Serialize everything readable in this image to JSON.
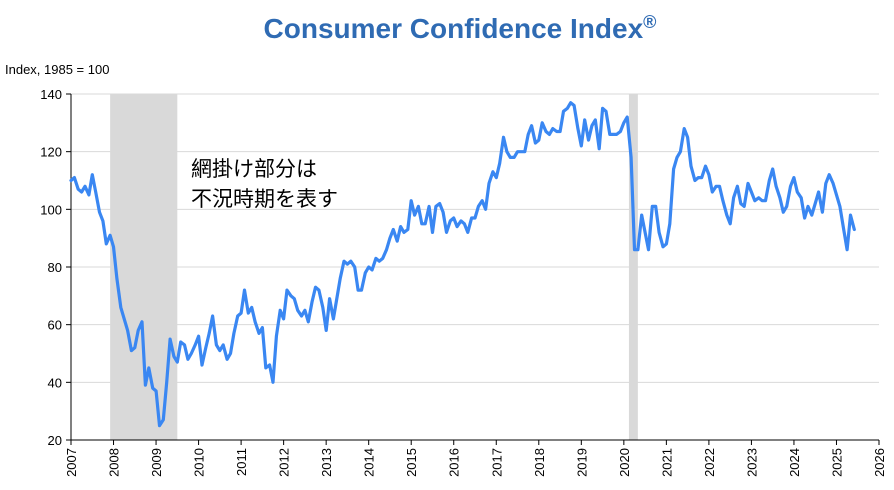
{
  "chart_data": {
    "type": "line",
    "title": "Consumer Confidence Index",
    "title_mark": "®",
    "ylabel": "Index, 1985 = 100",
    "xlabel": "",
    "ylim": [
      20,
      140
    ],
    "xlim": [
      2007,
      2026
    ],
    "yticks": [
      20,
      40,
      60,
      80,
      100,
      120,
      140
    ],
    "xticks": [
      2007,
      2008,
      2009,
      2010,
      2011,
      2012,
      2013,
      2014,
      2015,
      2016,
      2017,
      2018,
      2019,
      2020,
      2021,
      2022,
      2023,
      2024,
      2025,
      2026
    ],
    "grid": true,
    "annotation": [
      "網掛け部分は",
      "不況時期を表す"
    ],
    "recessions": [
      {
        "start": 2007.92,
        "end": 2009.5
      },
      {
        "start": 2020.12,
        "end": 2020.33
      }
    ],
    "series": [
      {
        "color": "#3a87f2",
        "points": [
          [
            2007.0,
            110
          ],
          [
            2007.08,
            111
          ],
          [
            2007.17,
            107
          ],
          [
            2007.25,
            106
          ],
          [
            2007.33,
            108
          ],
          [
            2007.42,
            105
          ],
          [
            2007.5,
            112
          ],
          [
            2007.58,
            106
          ],
          [
            2007.67,
            99
          ],
          [
            2007.75,
            96
          ],
          [
            2007.83,
            88
          ],
          [
            2007.92,
            91
          ],
          [
            2008.0,
            87
          ],
          [
            2008.08,
            76
          ],
          [
            2008.17,
            66
          ],
          [
            2008.25,
            62
          ],
          [
            2008.33,
            58
          ],
          [
            2008.42,
            51
          ],
          [
            2008.5,
            52
          ],
          [
            2008.58,
            58
          ],
          [
            2008.67,
            61
          ],
          [
            2008.75,
            39
          ],
          [
            2008.83,
            45
          ],
          [
            2008.92,
            38
          ],
          [
            2009.0,
            37
          ],
          [
            2009.08,
            25
          ],
          [
            2009.17,
            27
          ],
          [
            2009.25,
            40
          ],
          [
            2009.33,
            55
          ],
          [
            2009.42,
            49
          ],
          [
            2009.5,
            47
          ],
          [
            2009.58,
            54
          ],
          [
            2009.67,
            53
          ],
          [
            2009.75,
            48
          ],
          [
            2009.83,
            50
          ],
          [
            2009.92,
            53
          ],
          [
            2010.0,
            56
          ],
          [
            2010.08,
            46
          ],
          [
            2010.17,
            52
          ],
          [
            2010.25,
            57
          ],
          [
            2010.33,
            63
          ],
          [
            2010.42,
            53
          ],
          [
            2010.5,
            51
          ],
          [
            2010.58,
            53
          ],
          [
            2010.67,
            48
          ],
          [
            2010.75,
            50
          ],
          [
            2010.83,
            57
          ],
          [
            2010.92,
            63
          ],
          [
            2011.0,
            64
          ],
          [
            2011.08,
            72
          ],
          [
            2011.17,
            64
          ],
          [
            2011.25,
            66
          ],
          [
            2011.33,
            61
          ],
          [
            2011.42,
            57
          ],
          [
            2011.5,
            59
          ],
          [
            2011.58,
            45
          ],
          [
            2011.67,
            46
          ],
          [
            2011.75,
            40
          ],
          [
            2011.83,
            56
          ],
          [
            2011.92,
            65
          ],
          [
            2012.0,
            62
          ],
          [
            2012.08,
            72
          ],
          [
            2012.17,
            70
          ],
          [
            2012.25,
            69
          ],
          [
            2012.33,
            65
          ],
          [
            2012.42,
            63
          ],
          [
            2012.5,
            65
          ],
          [
            2012.58,
            61
          ],
          [
            2012.67,
            68
          ],
          [
            2012.75,
            73
          ],
          [
            2012.83,
            72
          ],
          [
            2012.92,
            66
          ],
          [
            2013.0,
            58
          ],
          [
            2013.08,
            69
          ],
          [
            2013.17,
            62
          ],
          [
            2013.25,
            69
          ],
          [
            2013.33,
            76
          ],
          [
            2013.42,
            82
          ],
          [
            2013.5,
            81
          ],
          [
            2013.58,
            82
          ],
          [
            2013.67,
            80
          ],
          [
            2013.75,
            72
          ],
          [
            2013.83,
            72
          ],
          [
            2013.92,
            78
          ],
          [
            2014.0,
            80
          ],
          [
            2014.08,
            79
          ],
          [
            2014.17,
            83
          ],
          [
            2014.25,
            82
          ],
          [
            2014.33,
            83
          ],
          [
            2014.42,
            86
          ],
          [
            2014.5,
            90
          ],
          [
            2014.58,
            93
          ],
          [
            2014.67,
            89
          ],
          [
            2014.75,
            94
          ],
          [
            2014.83,
            92
          ],
          [
            2014.92,
            93
          ],
          [
            2015.0,
            103
          ],
          [
            2015.08,
            98
          ],
          [
            2015.17,
            101
          ],
          [
            2015.25,
            95
          ],
          [
            2015.33,
            95
          ],
          [
            2015.42,
            101
          ],
          [
            2015.5,
            92
          ],
          [
            2015.58,
            101
          ],
          [
            2015.67,
            102
          ],
          [
            2015.75,
            99
          ],
          [
            2015.83,
            92
          ],
          [
            2015.92,
            96
          ],
          [
            2016.0,
            97
          ],
          [
            2016.08,
            94
          ],
          [
            2016.17,
            96
          ],
          [
            2016.25,
            95
          ],
          [
            2016.33,
            92
          ],
          [
            2016.42,
            97
          ],
          [
            2016.5,
            97
          ],
          [
            2016.58,
            101
          ],
          [
            2016.67,
            103
          ],
          [
            2016.75,
            100
          ],
          [
            2016.83,
            109
          ],
          [
            2016.92,
            113
          ],
          [
            2017.0,
            111
          ],
          [
            2017.08,
            116
          ],
          [
            2017.17,
            125
          ],
          [
            2017.25,
            120
          ],
          [
            2017.33,
            118
          ],
          [
            2017.42,
            118
          ],
          [
            2017.5,
            120
          ],
          [
            2017.58,
            120
          ],
          [
            2017.67,
            120
          ],
          [
            2017.75,
            126
          ],
          [
            2017.83,
            129
          ],
          [
            2017.92,
            123
          ],
          [
            2018.0,
            124
          ],
          [
            2018.08,
            130
          ],
          [
            2018.17,
            127
          ],
          [
            2018.25,
            126
          ],
          [
            2018.33,
            128
          ],
          [
            2018.42,
            127
          ],
          [
            2018.5,
            127
          ],
          [
            2018.58,
            134
          ],
          [
            2018.67,
            135
          ],
          [
            2018.75,
            137
          ],
          [
            2018.83,
            136
          ],
          [
            2018.92,
            128
          ],
          [
            2019.0,
            122
          ],
          [
            2019.08,
            131
          ],
          [
            2019.17,
            124
          ],
          [
            2019.25,
            129
          ],
          [
            2019.33,
            131
          ],
          [
            2019.42,
            121
          ],
          [
            2019.5,
            135
          ],
          [
            2019.58,
            134
          ],
          [
            2019.67,
            126
          ],
          [
            2019.75,
            126
          ],
          [
            2019.83,
            126
          ],
          [
            2019.92,
            127
          ],
          [
            2020.0,
            130
          ],
          [
            2020.08,
            132
          ],
          [
            2020.17,
            118
          ],
          [
            2020.25,
            86
          ],
          [
            2020.33,
            86
          ],
          [
            2020.42,
            98
          ],
          [
            2020.5,
            92
          ],
          [
            2020.58,
            86
          ],
          [
            2020.67,
            101
          ],
          [
            2020.75,
            101
          ],
          [
            2020.83,
            92
          ],
          [
            2020.92,
            87
          ],
          [
            2021.0,
            88
          ],
          [
            2021.08,
            95
          ],
          [
            2021.17,
            114
          ],
          [
            2021.25,
            118
          ],
          [
            2021.33,
            120
          ],
          [
            2021.42,
            128
          ],
          [
            2021.5,
            125
          ],
          [
            2021.58,
            115
          ],
          [
            2021.67,
            110
          ],
          [
            2021.75,
            111
          ],
          [
            2021.83,
            111
          ],
          [
            2021.92,
            115
          ],
          [
            2022.0,
            112
          ],
          [
            2022.08,
            106
          ],
          [
            2022.17,
            108
          ],
          [
            2022.25,
            108
          ],
          [
            2022.33,
            103
          ],
          [
            2022.42,
            98
          ],
          [
            2022.5,
            95
          ],
          [
            2022.58,
            104
          ],
          [
            2022.67,
            108
          ],
          [
            2022.75,
            102
          ],
          [
            2022.83,
            101
          ],
          [
            2022.92,
            109
          ],
          [
            2023.0,
            106
          ],
          [
            2023.08,
            103
          ],
          [
            2023.17,
            104
          ],
          [
            2023.25,
            103
          ],
          [
            2023.33,
            103
          ],
          [
            2023.42,
            110
          ],
          [
            2023.5,
            114
          ],
          [
            2023.58,
            108
          ],
          [
            2023.67,
            104
          ],
          [
            2023.75,
            99
          ],
          [
            2023.83,
            101
          ],
          [
            2023.92,
            108
          ],
          [
            2024.0,
            111
          ],
          [
            2024.08,
            106
          ],
          [
            2024.17,
            104
          ],
          [
            2024.25,
            97
          ],
          [
            2024.33,
            101
          ],
          [
            2024.42,
            98
          ],
          [
            2024.5,
            102
          ],
          [
            2024.58,
            106
          ],
          [
            2024.67,
            99
          ],
          [
            2024.75,
            109
          ],
          [
            2024.83,
            112
          ],
          [
            2024.92,
            109
          ],
          [
            2025.0,
            105
          ],
          [
            2025.08,
            101
          ],
          [
            2025.17,
            93
          ],
          [
            2025.25,
            86
          ],
          [
            2025.33,
            98
          ],
          [
            2025.42,
            93
          ]
        ]
      }
    ]
  }
}
